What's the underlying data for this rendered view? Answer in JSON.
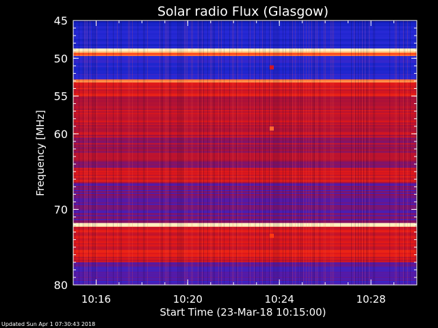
{
  "chart_data": {
    "type": "heatmap",
    "title": "Solar radio Flux (Glasgow)",
    "xlabel": "Start Time (23-Mar-18 10:15:00)",
    "ylabel": "Frequency [MHz]",
    "xlim_minutes": [
      10.25,
      10.5
    ],
    "x_range_time": [
      "10:15:00",
      "10:30:00"
    ],
    "x_ticks": [
      "10:16",
      "10:20",
      "10:24",
      "10:28"
    ],
    "x_tick_values_time": [
      "10:16",
      "10:20",
      "10:24",
      "10:28"
    ],
    "ylim": [
      45,
      80
    ],
    "y_ticks": [
      45,
      50,
      55,
      60,
      70,
      80
    ],
    "y_axis_note": "frequency increases downward",
    "colormap": [
      "#000080",
      "#1020c0",
      "#2a2ad8",
      "#5a18a0",
      "#a01040",
      "#e01818",
      "#ff3a10",
      "#ffb060",
      "#fff0c0"
    ],
    "bands": [
      {
        "from": 45.0,
        "to": 45.4,
        "level": 0.1
      },
      {
        "from": 45.4,
        "to": 48.7,
        "level": 0.2
      },
      {
        "from": 48.7,
        "to": 49.3,
        "level": 0.95
      },
      {
        "from": 49.3,
        "to": 49.7,
        "level": 0.75
      },
      {
        "from": 49.7,
        "to": 52.8,
        "level": 0.22
      },
      {
        "from": 52.8,
        "to": 53.2,
        "level": 0.88
      },
      {
        "from": 53.2,
        "to": 55.0,
        "level": 0.62
      },
      {
        "from": 55.0,
        "to": 60.5,
        "level": 0.55
      },
      {
        "from": 60.5,
        "to": 64.5,
        "level": 0.5
      },
      {
        "from": 64.5,
        "to": 66.5,
        "level": 0.6
      },
      {
        "from": 66.5,
        "to": 71.8,
        "level": 0.4
      },
      {
        "from": 71.8,
        "to": 72.3,
        "level": 0.95
      },
      {
        "from": 72.3,
        "to": 77.0,
        "level": 0.6
      },
      {
        "from": 77.0,
        "to": 80.0,
        "level": 0.35
      }
    ],
    "events": [
      {
        "time": "10:23:40",
        "freq": 51.2,
        "level": 0.6
      },
      {
        "time": "10:23:40",
        "freq": 59.3,
        "level": 0.8
      },
      {
        "time": "10:23:40",
        "freq": 73.5,
        "level": 0.75
      }
    ]
  },
  "footer": {
    "updated": "Updated Sun Apr  1 07:30:43 2018"
  }
}
